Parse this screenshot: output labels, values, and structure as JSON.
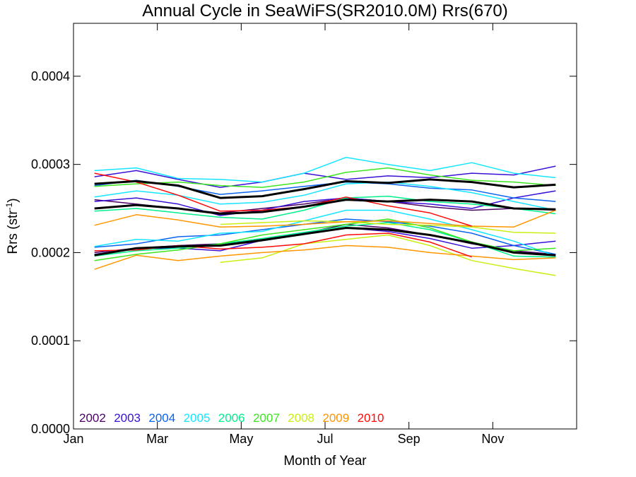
{
  "chart_data": {
    "type": "line",
    "title": "Annual Cycle in SeaWiFS(SR2010.0M) Rrs(670)",
    "xlabel": "Month of Year",
    "ylabel": "Rrs (str",
    "ylabel_sup": "-1",
    "ylabel_end": ")",
    "xlim": [
      0,
      12
    ],
    "ylim": [
      0,
      0.00046
    ],
    "x_ticks": [
      {
        "value": 0,
        "label": "Jan"
      },
      {
        "value": 2,
        "label": "Mar"
      },
      {
        "value": 4,
        "label": "May"
      },
      {
        "value": 6,
        "label": "Jul"
      },
      {
        "value": 8,
        "label": "Sep"
      },
      {
        "value": 10,
        "label": "Nov"
      }
    ],
    "y_ticks": [
      {
        "value": 0,
        "label": "0.0000"
      },
      {
        "value": 0.0001,
        "label": "0.0001"
      },
      {
        "value": 0.0002,
        "label": "0.0002"
      },
      {
        "value": 0.0003,
        "label": "0.0003"
      },
      {
        "value": 0.0004,
        "label": "0.0004"
      }
    ],
    "grid": false,
    "legend_position": "bottom-left",
    "legend": [
      {
        "label": "2002",
        "color": "#4b0066"
      },
      {
        "label": "2003",
        "color": "#3a10d8"
      },
      {
        "label": "2004",
        "color": "#0a64f0"
      },
      {
        "label": "2005",
        "color": "#14e6ff"
      },
      {
        "label": "2006",
        "color": "#00f08c"
      },
      {
        "label": "2007",
        "color": "#3ce61e"
      },
      {
        "label": "2008",
        "color": "#c8f014"
      },
      {
        "label": "2009",
        "color": "#ff9600"
      },
      {
        "label": "2010",
        "color": "#ff0a0a"
      }
    ],
    "x": [
      0.5,
      1.5,
      2.5,
      3.5,
      4.5,
      5.5,
      6.5,
      7.5,
      8.5,
      9.5,
      10.5,
      11.5
    ],
    "series": [
      {
        "color": "#4b0066",
        "width": 1.5,
        "values": [
          0.00026,
          0.000255,
          0.00025,
          0.000245,
          0.00025,
          0.000255,
          0.000262,
          0.000258,
          0.000252,
          0.000248,
          0.00025,
          0.000248
        ]
      },
      {
        "color": "#4b0066",
        "width": 1.5,
        "values": [
          0.0002,
          0.000205,
          0.000208,
          0.00021,
          0.000215,
          0.000222,
          0.000232,
          0.000228,
          0.00022,
          0.00021,
          0.000202,
          0.000198
        ]
      },
      {
        "color": "#3a10d8",
        "width": 1.5,
        "values": [
          0.000286,
          0.000293,
          0.000283,
          0.000274,
          0.00028,
          0.00029,
          0.000283,
          0.000287,
          0.000285,
          0.00029,
          0.000288,
          0.000298
        ]
      },
      {
        "color": "#3a10d8",
        "width": 1.5,
        "values": [
          0.000258,
          0.000262,
          0.000255,
          0.000242,
          0.000248,
          0.000258,
          0.000262,
          0.000258,
          0.000255,
          0.00025,
          0.000262,
          0.00027
        ]
      },
      {
        "color": "#3a10d8",
        "width": 1.5,
        "values": [
          0.000198,
          0.000205,
          0.000205,
          0.000202,
          0.000214,
          0.000222,
          0.000228,
          0.000224,
          0.000216,
          0.000205,
          0.000208,
          0.000213
        ]
      },
      {
        "color": "#0a64f0",
        "width": 1.5,
        "values": [
          0.000276,
          0.000282,
          0.000275,
          0.000266,
          0.00027,
          0.000275,
          0.00028,
          0.000278,
          0.000273,
          0.000271,
          0.000262,
          0.000258
        ]
      },
      {
        "color": "#0a64f0",
        "width": 1.5,
        "values": [
          0.000206,
          0.00021,
          0.000218,
          0.00022,
          0.000226,
          0.000232,
          0.000238,
          0.000235,
          0.00023,
          0.000222,
          0.000208,
          0.000198
        ]
      },
      {
        "color": "#14e6ff",
        "width": 1.5,
        "values": [
          0.000293,
          0.000296,
          0.000284,
          0.000283,
          0.00028,
          0.00029,
          0.000308,
          0.0003,
          0.000293,
          0.000302,
          0.00029,
          0.000285
        ]
      },
      {
        "color": "#14e6ff",
        "width": 1.5,
        "values": [
          0.000263,
          0.00027,
          0.000265,
          0.000255,
          0.000257,
          0.000265,
          0.000278,
          0.00028,
          0.000275,
          0.000268,
          0.000258,
          0.000248
        ]
      },
      {
        "color": "#14e6ff",
        "width": 1.5,
        "values": [
          0.000207,
          0.000215,
          0.000213,
          0.000222,
          0.000224,
          0.000236,
          0.000248,
          0.000248,
          0.000238,
          0.000226,
          0.000213,
          0.000196
        ]
      },
      {
        "color": "#00f08c",
        "width": 1.5,
        "values": [
          0.000247,
          0.00025,
          0.000245,
          0.00024,
          0.000238,
          0.000248,
          0.000262,
          0.000264,
          0.000258,
          0.000255,
          0.00025,
          0.000244
        ]
      },
      {
        "color": "#00f08c",
        "width": 1.5,
        "values": [
          0.000196,
          0.000202,
          0.000205,
          0.00021,
          0.000216,
          0.000223,
          0.00023,
          0.000234,
          0.000226,
          0.000212,
          0.000196,
          0.000195
        ]
      },
      {
        "color": "#3ce61e",
        "width": 1.5,
        "values": [
          0.000275,
          0.000278,
          0.00028,
          0.000276,
          0.000274,
          0.00028,
          0.000291,
          0.000296,
          0.000288,
          0.000282,
          0.00028,
          0.000276
        ]
      },
      {
        "color": "#3ce61e",
        "width": 1.5,
        "values": [
          0.000191,
          0.000198,
          0.000203,
          0.00021,
          0.00022,
          0.000226,
          0.000232,
          0.000238,
          0.000228,
          0.000212,
          0.000202,
          0.000205
        ]
      },
      {
        "color": "#c8f014",
        "width": 1.5,
        "values": [
          null,
          null,
          null,
          0.000189,
          0.000194,
          0.00021,
          0.000215,
          0.00022,
          0.000208,
          0.000191,
          0.000182,
          0.000174
        ]
      },
      {
        "color": "#c8f014",
        "width": 1.5,
        "values": [
          null,
          null,
          null,
          0.000232,
          0.000234,
          0.000236,
          0.000235,
          0.000232,
          0.000231,
          0.000229,
          0.000223,
          0.000222
        ]
      },
      {
        "color": "#ff9600",
        "width": 1.5,
        "values": [
          0.000181,
          0.000197,
          0.000191,
          0.000196,
          0.0002,
          0.000203,
          0.000208,
          0.000206,
          0.0002,
          0.000196,
          0.000192,
          0.000194
        ]
      },
      {
        "color": "#ff9600",
        "width": 1.5,
        "values": [
          0.000231,
          0.000243,
          0.000237,
          0.000229,
          0.00023,
          0.000232,
          0.000235,
          0.000236,
          0.000233,
          0.00023,
          0.000229,
          0.000248
        ]
      },
      {
        "color": "#ff0a0a",
        "width": 1.5,
        "values": [
          0.00029,
          0.00028,
          0.000265,
          0.000247,
          0.000248,
          0.000252,
          0.000263,
          0.000253,
          0.000245,
          0.00023,
          null,
          null
        ]
      },
      {
        "color": "#ff0a0a",
        "width": 1.5,
        "values": [
          0.000202,
          0.000203,
          0.000208,
          0.000204,
          0.000206,
          0.00021,
          0.00022,
          0.000222,
          0.000212,
          0.000195,
          null,
          null
        ]
      },
      {
        "color": "#000000",
        "width": 3,
        "values": [
          0.000278,
          0.000281,
          0.000276,
          0.000262,
          0.000264,
          0.000272,
          0.000281,
          0.000279,
          0.000283,
          0.00028,
          0.000274,
          0.000277
        ]
      },
      {
        "color": "#000000",
        "width": 3,
        "values": [
          0.00025,
          0.000254,
          0.00025,
          0.000244,
          0.000246,
          0.000252,
          0.00026,
          0.000258,
          0.00026,
          0.000258,
          0.00025,
          0.000249
        ]
      },
      {
        "color": "#000000",
        "width": 3,
        "values": [
          0.000197,
          0.000205,
          0.000207,
          0.000208,
          0.000214,
          0.000221,
          0.000228,
          0.000226,
          0.00022,
          0.000211,
          0.0002,
          0.000197
        ]
      }
    ]
  }
}
